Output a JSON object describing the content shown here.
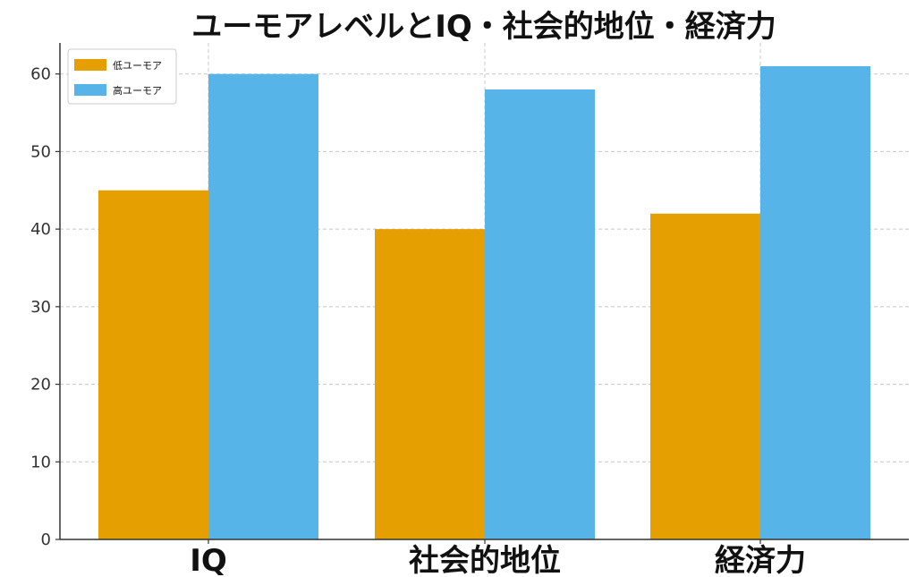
{
  "chart_data": {
    "type": "bar",
    "title": "ユーモアレベルとIQ・社会的地位・経済力",
    "xlabel": "",
    "ylabel": "",
    "categories": [
      "IQ",
      "社会的地位",
      "経済力"
    ],
    "series": [
      {
        "name": "低ユーモア",
        "values": [
          45,
          40,
          42
        ],
        "color": "#E69F00"
      },
      {
        "name": "高ユーモア",
        "values": [
          60,
          58,
          61
        ],
        "color": "#56B4E9"
      }
    ],
    "ylim": [
      0,
      64
    ],
    "yticks": [
      0,
      10,
      20,
      30,
      40,
      50,
      60
    ],
    "grid": true,
    "legend_position": "top-left"
  }
}
